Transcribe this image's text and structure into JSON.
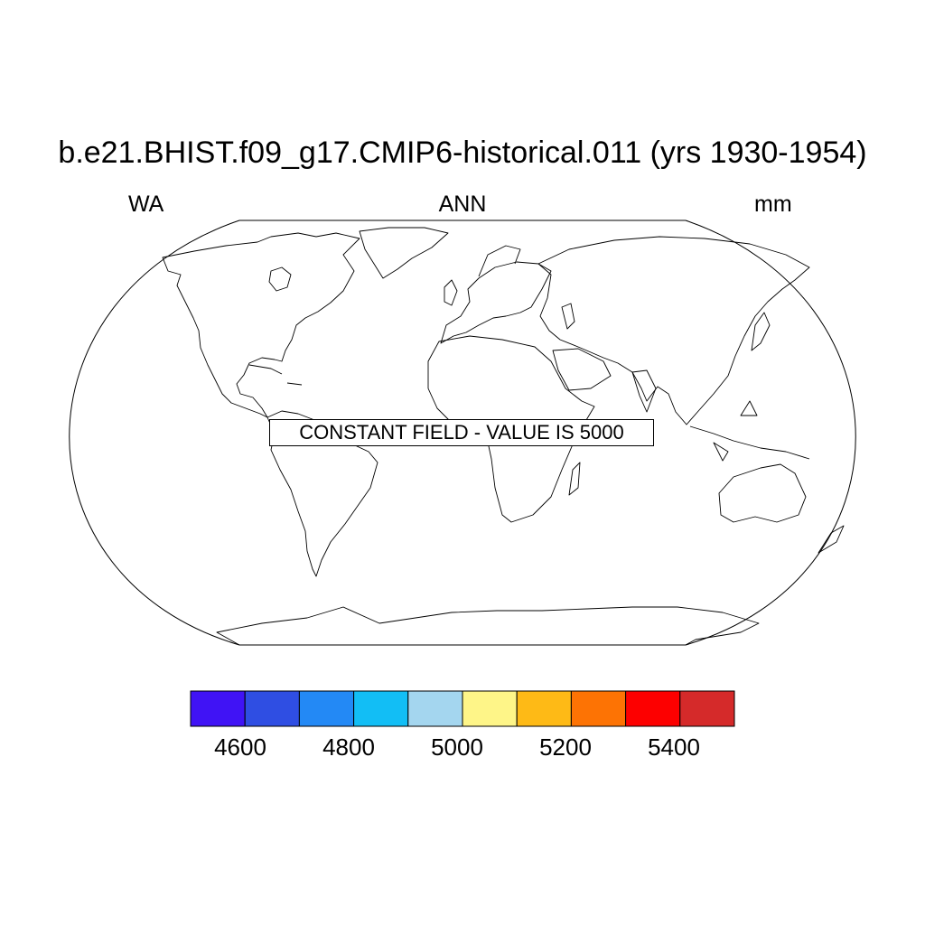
{
  "title": "b.e21.BHIST.f09_g17.CMIP6-historical.011 (yrs 1930-1954)",
  "subtitle_left": "WA",
  "subtitle_center": "ANN",
  "subtitle_right": "mm",
  "notice": "CONSTANT FIELD - VALUE IS 5000",
  "colorbar": {
    "colors": [
      "#4013f5",
      "#2f4ee3",
      "#2389f5",
      "#12bef5",
      "#a4d6ef",
      "#fef588",
      "#feba16",
      "#fd7304",
      "#fd0000",
      "#d52a2a"
    ],
    "labels": [
      "4600",
      "4800",
      "5000",
      "5200",
      "5400"
    ]
  }
}
